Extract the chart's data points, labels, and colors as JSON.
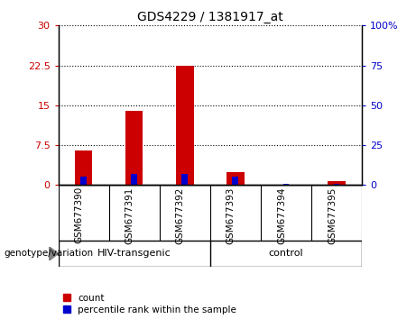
{
  "title": "GDS4229 / 1381917_at",
  "samples": [
    "GSM677390",
    "GSM677391",
    "GSM677392",
    "GSM677393",
    "GSM677394",
    "GSM677395"
  ],
  "count_values": [
    6.5,
    14.0,
    22.5,
    2.5,
    0.05,
    0.8
  ],
  "percentile_values": [
    5.5,
    7.0,
    7.0,
    5.0,
    1.0,
    1.0
  ],
  "left_ylim": [
    0,
    30
  ],
  "right_ylim": [
    0,
    100
  ],
  "left_yticks": [
    0,
    7.5,
    15,
    22.5,
    30
  ],
  "right_yticks": [
    0,
    25,
    50,
    75,
    100
  ],
  "left_yticklabels": [
    "0",
    "7.5",
    "15",
    "22.5",
    "30"
  ],
  "right_yticklabels": [
    "0",
    "25",
    "50",
    "75",
    "100%"
  ],
  "left_tick_color": "#CC0000",
  "right_tick_color": "#0000CC",
  "bar_color_red": "#CC0000",
  "bar_color_blue": "#0000CC",
  "grid_linestyle": "dotted",
  "grid_color": "black",
  "bg_plot": "white",
  "bg_label": "#D3D3D3",
  "bg_group": "#90EE90",
  "legend_count": "count",
  "legend_percentile": "percentile rank within the sample",
  "genotype_label": "genotype/variation",
  "group_labels": [
    "HIV-transgenic",
    "control"
  ],
  "group_boundary": 2.5,
  "red_bar_width": 0.35,
  "blue_bar_width": 0.12
}
